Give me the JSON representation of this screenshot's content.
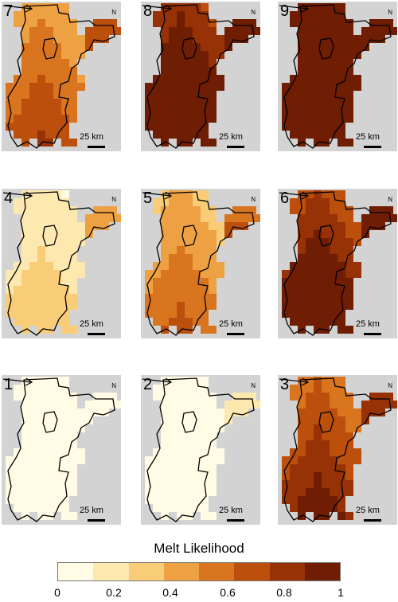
{
  "panels": [
    {
      "label": "7",
      "level": 0.55
    },
    {
      "label": "8",
      "level": 0.8
    },
    {
      "label": "9",
      "level": 0.97
    },
    {
      "label": "4",
      "level": 0.35
    },
    {
      "label": "5",
      "level": 0.5
    },
    {
      "label": "6",
      "level": 0.75
    },
    {
      "label": "1",
      "level": 0.05
    },
    {
      "label": "2",
      "level": 0.2
    },
    {
      "label": "3",
      "level": 0.65
    }
  ],
  "north_label": "N",
  "scale_label": "25 km",
  "legend": {
    "title": "Melt Likelihood",
    "ticks": [
      "0",
      "0.2",
      "0.4",
      "0.6",
      "0.8",
      "1"
    ],
    "bin_colors": [
      "#fffbe4",
      "#fde8b0",
      "#f9cd77",
      "#eea143",
      "#d9751f",
      "#bb4f0b",
      "#963206",
      "#6f1d03"
    ]
  },
  "background_color": "#d3d3d3",
  "outline_color": "#000000"
}
